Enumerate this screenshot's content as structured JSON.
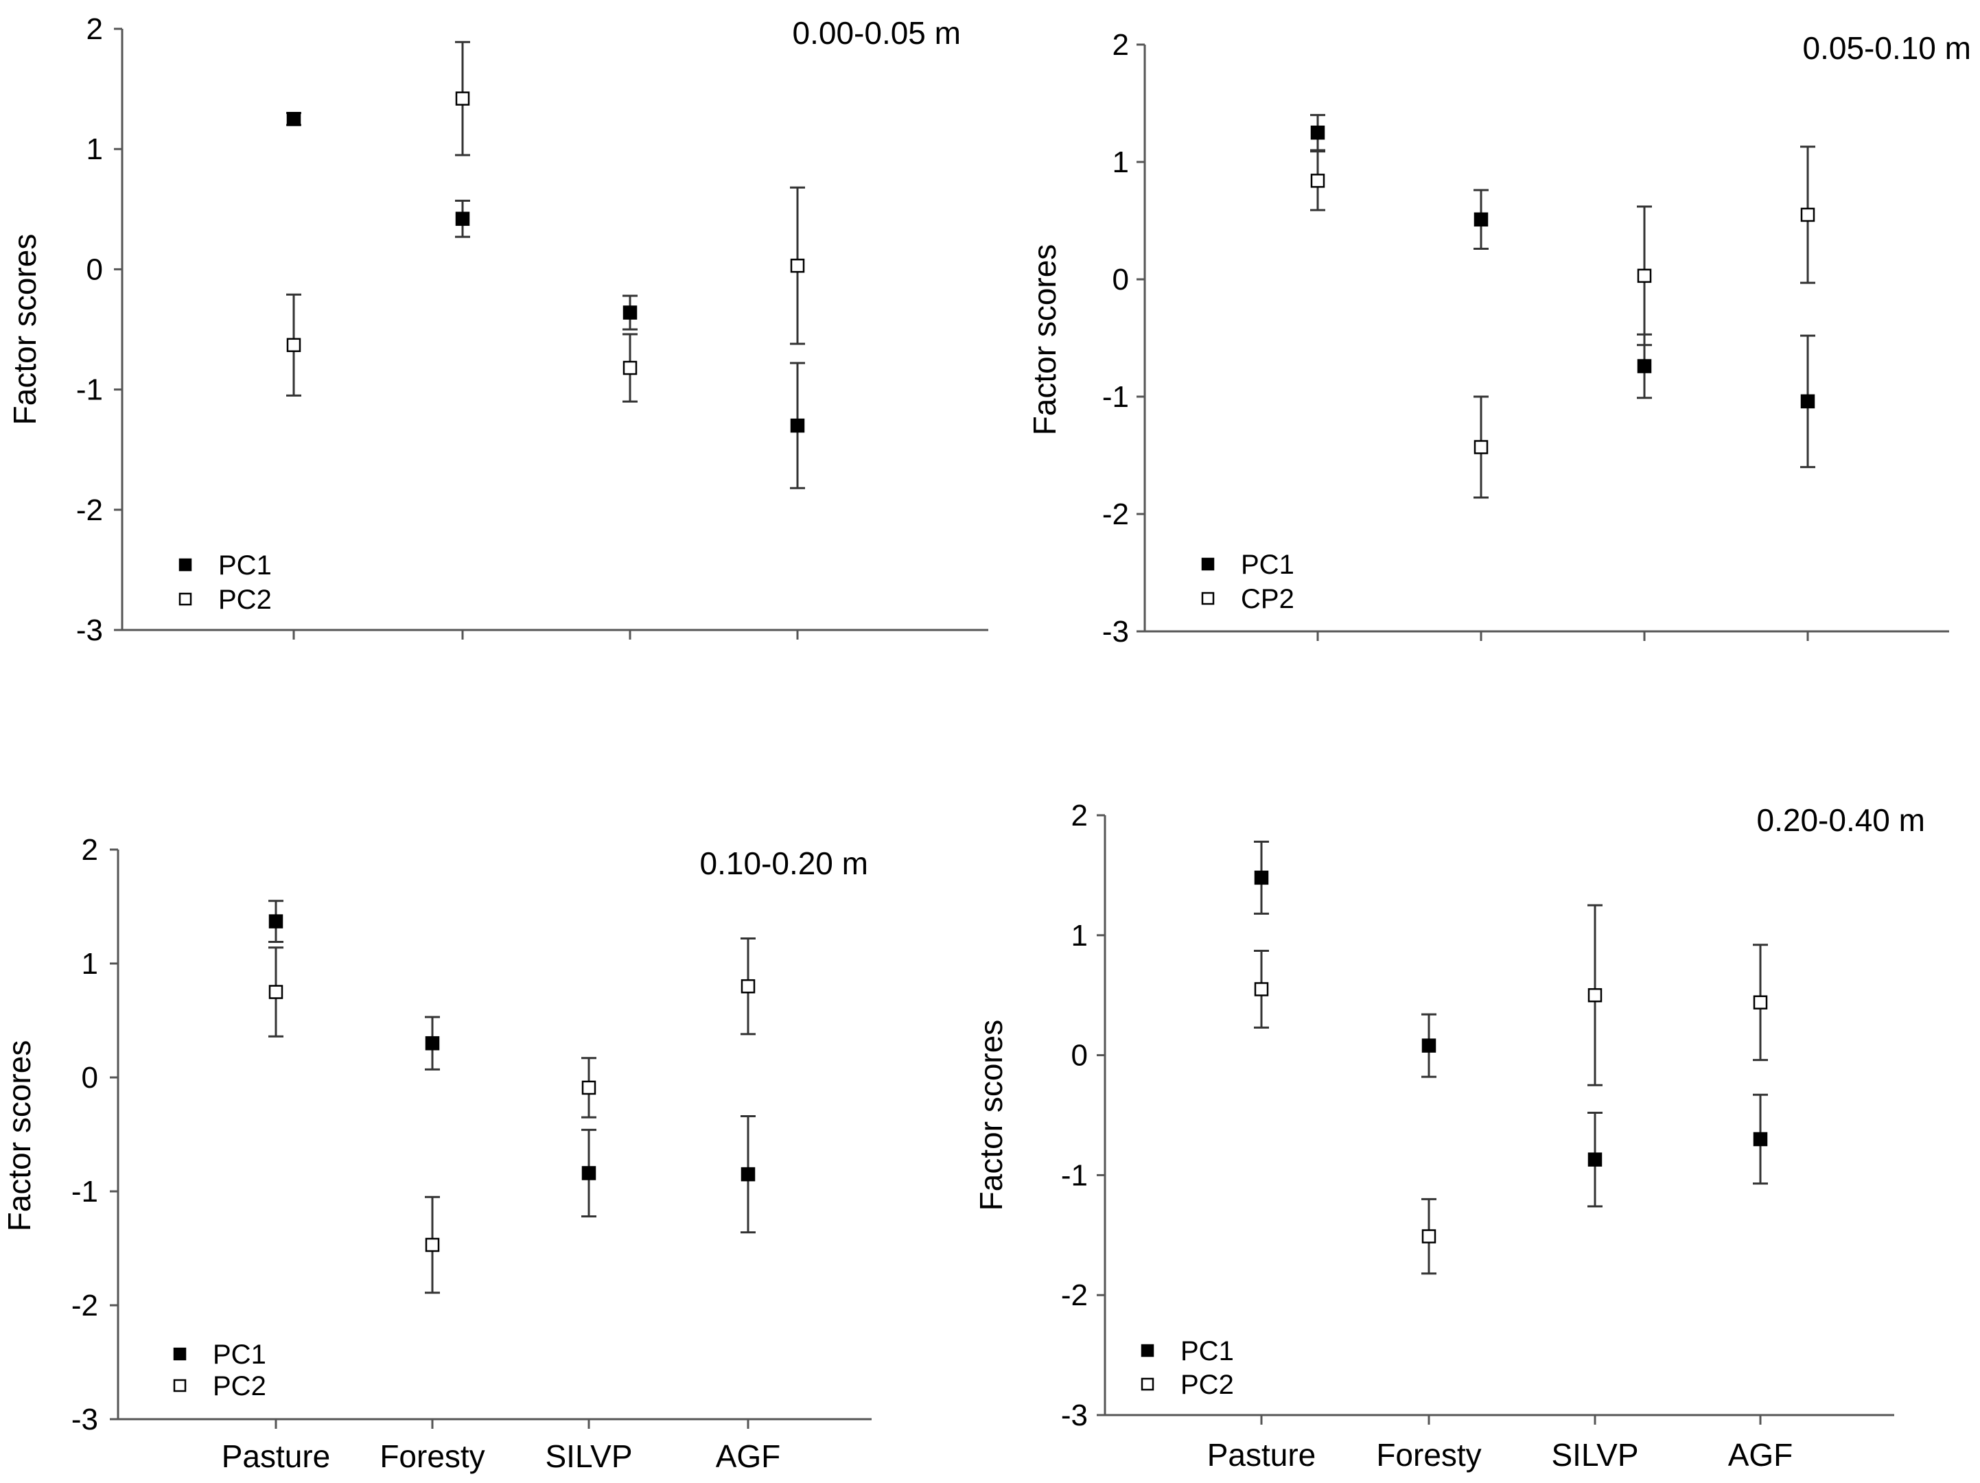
{
  "chart_data": [
    {
      "type": "scatter",
      "title": "0.00-0.05 m",
      "ylabel": "Factor scores",
      "xlabel": "",
      "ylim": [
        -3,
        2
      ],
      "yticks": [
        "2",
        "1",
        "0",
        "-1",
        "-2",
        "-3"
      ],
      "categories": [
        "Pasture",
        "Foresty",
        "SILVP",
        "AGF"
      ],
      "show_category_labels": false,
      "legend_position": "bottom-left",
      "series": [
        {
          "name": "PC1",
          "marker": "filled-square",
          "values": [
            1.25,
            0.42,
            -0.36,
            -1.3
          ],
          "errors": [
            0.05,
            0.15,
            0.14,
            0.52
          ]
        },
        {
          "name": "PC2",
          "marker": "open-square",
          "values": [
            -0.63,
            1.42,
            -0.82,
            0.03
          ],
          "errors": [
            0.42,
            0.47,
            0.28,
            0.65
          ]
        }
      ]
    },
    {
      "type": "scatter",
      "title": "0.05-0.10 m",
      "ylabel": "Factor scores",
      "xlabel": "",
      "ylim": [
        -3,
        2
      ],
      "yticks": [
        "2",
        "1",
        "0",
        "-1",
        "-2",
        "-3"
      ],
      "categories": [
        "Pasture",
        "Foresty",
        "SILVP",
        "AGF"
      ],
      "show_category_labels": false,
      "legend_position": "bottom-left",
      "series": [
        {
          "name": "PC1",
          "marker": "filled-square",
          "values": [
            1.25,
            0.51,
            -0.74,
            -1.04
          ],
          "errors": [
            0.15,
            0.25,
            0.27,
            0.56
          ]
        },
        {
          "name": "CP2",
          "marker": "open-square",
          "values": [
            0.84,
            -1.43,
            0.03,
            0.55
          ],
          "errors": [
            0.25,
            0.43,
            0.59,
            0.58
          ]
        }
      ]
    },
    {
      "type": "scatter",
      "title": "0.10-0.20 m",
      "ylabel": "Factor scores",
      "xlabel": "",
      "ylim": [
        -3,
        2
      ],
      "yticks": [
        "2",
        "1",
        "0",
        "-1",
        "-2",
        "-3"
      ],
      "categories": [
        "Pasture",
        "Foresty",
        "SILVP",
        "AGF"
      ],
      "show_category_labels": true,
      "legend_position": "bottom-left",
      "series": [
        {
          "name": "PC1",
          "marker": "filled-square",
          "values": [
            1.37,
            0.3,
            -0.84,
            -0.85
          ],
          "errors": [
            0.18,
            0.23,
            0.38,
            0.51
          ]
        },
        {
          "name": "PC2",
          "marker": "open-square",
          "values": [
            0.75,
            -1.47,
            -0.09,
            0.8
          ],
          "errors": [
            0.39,
            0.42,
            0.26,
            0.42
          ]
        }
      ]
    },
    {
      "type": "scatter",
      "title": "0.20-0.40 m",
      "ylabel": "Factor scores",
      "xlabel": "",
      "ylim": [
        -3,
        2
      ],
      "yticks": [
        "2",
        "1",
        "0",
        "-1",
        "-2",
        "-3"
      ],
      "categories": [
        "Pasture",
        "Foresty",
        "SILVP",
        "AGF"
      ],
      "show_category_labels": true,
      "legend_position": "bottom-left",
      "series": [
        {
          "name": "PC1",
          "marker": "filled-square",
          "values": [
            1.48,
            0.08,
            -0.87,
            -0.7
          ],
          "errors": [
            0.3,
            0.26,
            0.39,
            0.37
          ]
        },
        {
          "name": "PC2",
          "marker": "open-square",
          "values": [
            0.55,
            -1.51,
            0.5,
            0.44
          ],
          "errors": [
            0.32,
            0.31,
            0.75,
            0.48
          ]
        }
      ]
    }
  ]
}
